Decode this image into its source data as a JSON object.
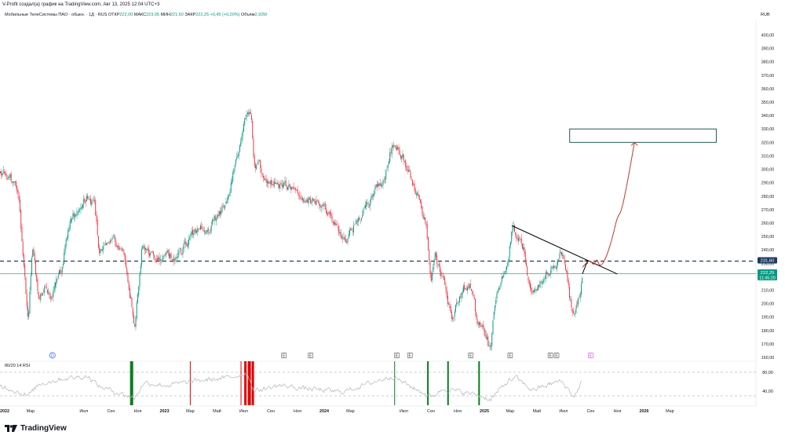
{
  "header": {
    "author_line": "V-Profit создал(а) график на TradingView.com, Авг 13, 2025 12:04 UTC+3"
  },
  "legend": {
    "symbol": "Мобильные ТелеСистемы ПАО · обыкн. · 1Д · RUS",
    "open_label": "ОТКР",
    "open_value": "222,00",
    "high_label": "МАКС",
    "high_value": "223,05",
    "low_label": "МИН",
    "low_value": "221,60",
    "close_label": "ЗАКР",
    "close_value": "222,25",
    "change": "+0,45 (+0,20%)",
    "volume_label": "Объём",
    "volume_value": "2,92M"
  },
  "currency": "RUB",
  "price_badges": {
    "level_value": "231,60",
    "last_value": "222,25",
    "countdown": "11:45:20"
  },
  "rsi": {
    "label": "80/20 14 RSI",
    "upper_tick": "80,00",
    "lower_tick": "40,00"
  },
  "brand": {
    "name": "TradingView"
  },
  "colors": {
    "up": "#089981",
    "down": "#f23645",
    "level_line": "#1e3a5f",
    "last_line": "#089981",
    "target_box": "#1e5c52",
    "projection": "#c0392b",
    "trendline": "#000000",
    "rsi_line": "#b2b5be",
    "rsi_bar_green": "#0a7d1e",
    "rsi_bar_red": "#e00000",
    "badge_level": "#1e3a5f",
    "badge_last": "#089981"
  },
  "chart_data": {
    "type": "candlestick",
    "y_axis_ticks": [
      "400,00",
      "390,00",
      "380,00",
      "370,00",
      "360,00",
      "350,00",
      "340,00",
      "330,00",
      "320,00",
      "310,00",
      "300,00",
      "290,00",
      "280,00",
      "270,00",
      "260,00",
      "250,00",
      "240,00",
      "230,00",
      "220,00",
      "210,00",
      "200,00",
      "190,00",
      "180,00",
      "170,00",
      "160,00"
    ],
    "ylim": [
      155,
      405
    ],
    "x_axis_ticks": [
      "2022",
      "Мар",
      "Июл",
      "Сен",
      "Ноя",
      "2023",
      "Мар",
      "Май",
      "Июл",
      "Сен",
      "Ноя",
      "2024",
      "Мар",
      "Июл",
      "Сен",
      "Ноя",
      "2025",
      "Мар",
      "Май",
      "Июл",
      "Сен",
      "Ноя",
      "2026",
      "Мар"
    ],
    "x_dates": [
      "2022-01",
      "2022-03",
      "2022-07",
      "2022-09",
      "2022-11",
      "2023-01",
      "2023-03",
      "2023-05",
      "2023-07",
      "2023-09",
      "2023-11",
      "2024-01",
      "2024-03",
      "2024-07",
      "2024-09",
      "2024-11",
      "2025-01",
      "2025-03",
      "2025-05",
      "2025-07",
      "2025-09",
      "2025-11",
      "2026-01",
      "2026-03"
    ],
    "path": [
      [
        "2021-12-01",
        300
      ],
      [
        "2022-01-10",
        297
      ],
      [
        "2022-02-01",
        282
      ],
      [
        "2022-02-24",
        185
      ],
      [
        "2022-03-05",
        245
      ],
      [
        "2022-03-20",
        200
      ],
      [
        "2022-04-01",
        212
      ],
      [
        "2022-04-15",
        205
      ],
      [
        "2022-05-10",
        225
      ],
      [
        "2022-06-01",
        265
      ],
      [
        "2022-06-20",
        272
      ],
      [
        "2022-07-10",
        280
      ],
      [
        "2022-07-25",
        274
      ],
      [
        "2022-08-05",
        240
      ],
      [
        "2022-08-20",
        243
      ],
      [
        "2022-09-01",
        248
      ],
      [
        "2022-09-15",
        243
      ],
      [
        "2022-09-30",
        235
      ],
      [
        "2022-10-10",
        218
      ],
      [
        "2022-10-25",
        183
      ],
      [
        "2022-11-10",
        240
      ],
      [
        "2022-12-01",
        235
      ],
      [
        "2022-12-20",
        232
      ],
      [
        "2023-01-05",
        235
      ],
      [
        "2023-02-01",
        236
      ],
      [
        "2023-03-01",
        248
      ],
      [
        "2023-03-20",
        256
      ],
      [
        "2023-04-15",
        258
      ],
      [
        "2023-05-10",
        268
      ],
      [
        "2023-05-25",
        275
      ],
      [
        "2023-06-10",
        300
      ],
      [
        "2023-06-25",
        322
      ],
      [
        "2023-07-10",
        346
      ],
      [
        "2023-07-18",
        345
      ],
      [
        "2023-07-25",
        306
      ],
      [
        "2023-08-15",
        298
      ],
      [
        "2023-09-01",
        290
      ],
      [
        "2023-09-20",
        290
      ],
      [
        "2023-10-10",
        285
      ],
      [
        "2023-10-25",
        282
      ],
      [
        "2023-11-10",
        279
      ],
      [
        "2023-11-25",
        278
      ],
      [
        "2023-12-15",
        275
      ],
      [
        "2024-01-05",
        270
      ],
      [
        "2024-01-25",
        262
      ],
      [
        "2024-02-10",
        250
      ],
      [
        "2024-02-25",
        248
      ],
      [
        "2024-03-15",
        262
      ],
      [
        "2024-04-05",
        272
      ],
      [
        "2024-04-25",
        284
      ],
      [
        "2024-05-10",
        290
      ],
      [
        "2024-05-25",
        303
      ],
      [
        "2024-06-05",
        319
      ],
      [
        "2024-06-20",
        316
      ],
      [
        "2024-07-05",
        305
      ],
      [
        "2024-07-20",
        288
      ],
      [
        "2024-08-01",
        282
      ],
      [
        "2024-08-10",
        270
      ],
      [
        "2024-08-20",
        262
      ],
      [
        "2024-09-01",
        220
      ],
      [
        "2024-09-10",
        238
      ],
      [
        "2024-09-20",
        224
      ],
      [
        "2024-10-01",
        214
      ],
      [
        "2024-10-20",
        190
      ],
      [
        "2024-11-05",
        207
      ],
      [
        "2024-11-25",
        214
      ],
      [
        "2024-12-05",
        210
      ],
      [
        "2024-12-15",
        188
      ],
      [
        "2024-12-25",
        182
      ],
      [
        "2025-01-05",
        175
      ],
      [
        "2025-01-15",
        165
      ],
      [
        "2025-01-25",
        200
      ],
      [
        "2025-02-10",
        218
      ],
      [
        "2025-02-25",
        230
      ],
      [
        "2025-03-05",
        255
      ],
      [
        "2025-03-15",
        252
      ],
      [
        "2025-04-01",
        242
      ],
      [
        "2025-04-10",
        221
      ],
      [
        "2025-04-20",
        210
      ],
      [
        "2025-05-01",
        214
      ],
      [
        "2025-05-20",
        222
      ],
      [
        "2025-06-10",
        227
      ],
      [
        "2025-06-25",
        237
      ],
      [
        "2025-07-05",
        230
      ],
      [
        "2025-07-15",
        205
      ],
      [
        "2025-07-25",
        188
      ],
      [
        "2025-08-01",
        200
      ],
      [
        "2025-08-10",
        211
      ],
      [
        "2025-08-13",
        222.25
      ]
    ],
    "horizontal_levels": [
      {
        "value": 231.6,
        "style": "dashed"
      },
      {
        "value": 222.25,
        "style": "solid"
      }
    ],
    "trendline": [
      [
        "2025-03-05",
        258
      ],
      [
        "2025-11-01",
        222
      ]
    ],
    "target_zone": {
      "x0": "2025-07-15",
      "x1": "2026-06-15",
      "y0": 320,
      "y1": 330
    },
    "projection_path": [
      [
        "2025-08-13",
        227
      ],
      [
        "2025-08-30",
        233
      ],
      [
        "2025-09-08",
        228
      ],
      [
        "2025-09-15",
        234
      ],
      [
        "2025-09-22",
        227
      ],
      [
        "2025-10-05",
        233
      ],
      [
        "2025-10-20",
        248
      ],
      [
        "2025-11-01",
        265
      ],
      [
        "2025-11-10",
        268
      ],
      [
        "2025-11-25",
        292
      ],
      [
        "2025-12-10",
        320
      ]
    ],
    "event_markers": [
      {
        "date": "2022-04-20",
        "label": "D"
      },
      {
        "date": "2023-10-01",
        "label": "E"
      },
      {
        "date": "2023-12-01",
        "label": "E"
      },
      {
        "date": "2024-06-15",
        "label": "E"
      },
      {
        "date": "2024-07-15",
        "label": "E"
      },
      {
        "date": "2024-12-01",
        "label": "E"
      },
      {
        "date": "2025-03-01",
        "label": "E"
      },
      {
        "date": "2025-06-01",
        "label": "E"
      },
      {
        "date": "2025-06-15",
        "label": "E"
      },
      {
        "date": "2025-09-01",
        "label": "E"
      }
    ],
    "rsi_series": [
      [
        "2021-12-01",
        60
      ],
      [
        "2022-02-24",
        30
      ],
      [
        "2022-03-20",
        55
      ],
      [
        "2022-05-10",
        66
      ],
      [
        "2022-07-10",
        72
      ],
      [
        "2022-08-05",
        50
      ],
      [
        "2022-10-25",
        25
      ],
      [
        "2022-11-15",
        58
      ],
      [
        "2023-01-05",
        52
      ],
      [
        "2023-03-20",
        62
      ],
      [
        "2023-05-25",
        68
      ],
      [
        "2023-07-10",
        78
      ],
      [
        "2023-07-25",
        40
      ],
      [
        "2023-09-20",
        52
      ],
      [
        "2023-11-25",
        45
      ],
      [
        "2024-02-10",
        38
      ],
      [
        "2024-04-25",
        60
      ],
      [
        "2024-06-05",
        72
      ],
      [
        "2024-07-20",
        48
      ],
      [
        "2024-09-01",
        28
      ],
      [
        "2024-10-01",
        45
      ],
      [
        "2024-12-15",
        32
      ],
      [
        "2025-01-15",
        22
      ],
      [
        "2025-02-25",
        62
      ],
      [
        "2025-03-15",
        68
      ],
      [
        "2025-04-20",
        42
      ],
      [
        "2025-06-25",
        62
      ],
      [
        "2025-07-25",
        28
      ],
      [
        "2025-08-13",
        62
      ]
    ],
    "rsi_ylim": [
      20,
      90
    ],
    "rsi_bars": [
      {
        "date": "2022-10-18",
        "color": "green",
        "weight": 4
      },
      {
        "date": "2023-03-01",
        "color": "red",
        "weight": 1
      },
      {
        "date": "2023-06-25",
        "color": "red",
        "weight": 1
      },
      {
        "date": "2023-07-05",
        "color": "red",
        "weight": 3
      },
      {
        "date": "2023-07-14",
        "color": "red",
        "weight": 4
      },
      {
        "date": "2023-07-22",
        "color": "red",
        "weight": 3
      },
      {
        "date": "2024-06-10",
        "color": "green",
        "weight": 1
      },
      {
        "date": "2024-08-25",
        "color": "green",
        "weight": 2
      },
      {
        "date": "2024-10-10",
        "color": "green",
        "weight": 2
      },
      {
        "date": "2024-12-20",
        "color": "green",
        "weight": 2
      }
    ]
  }
}
